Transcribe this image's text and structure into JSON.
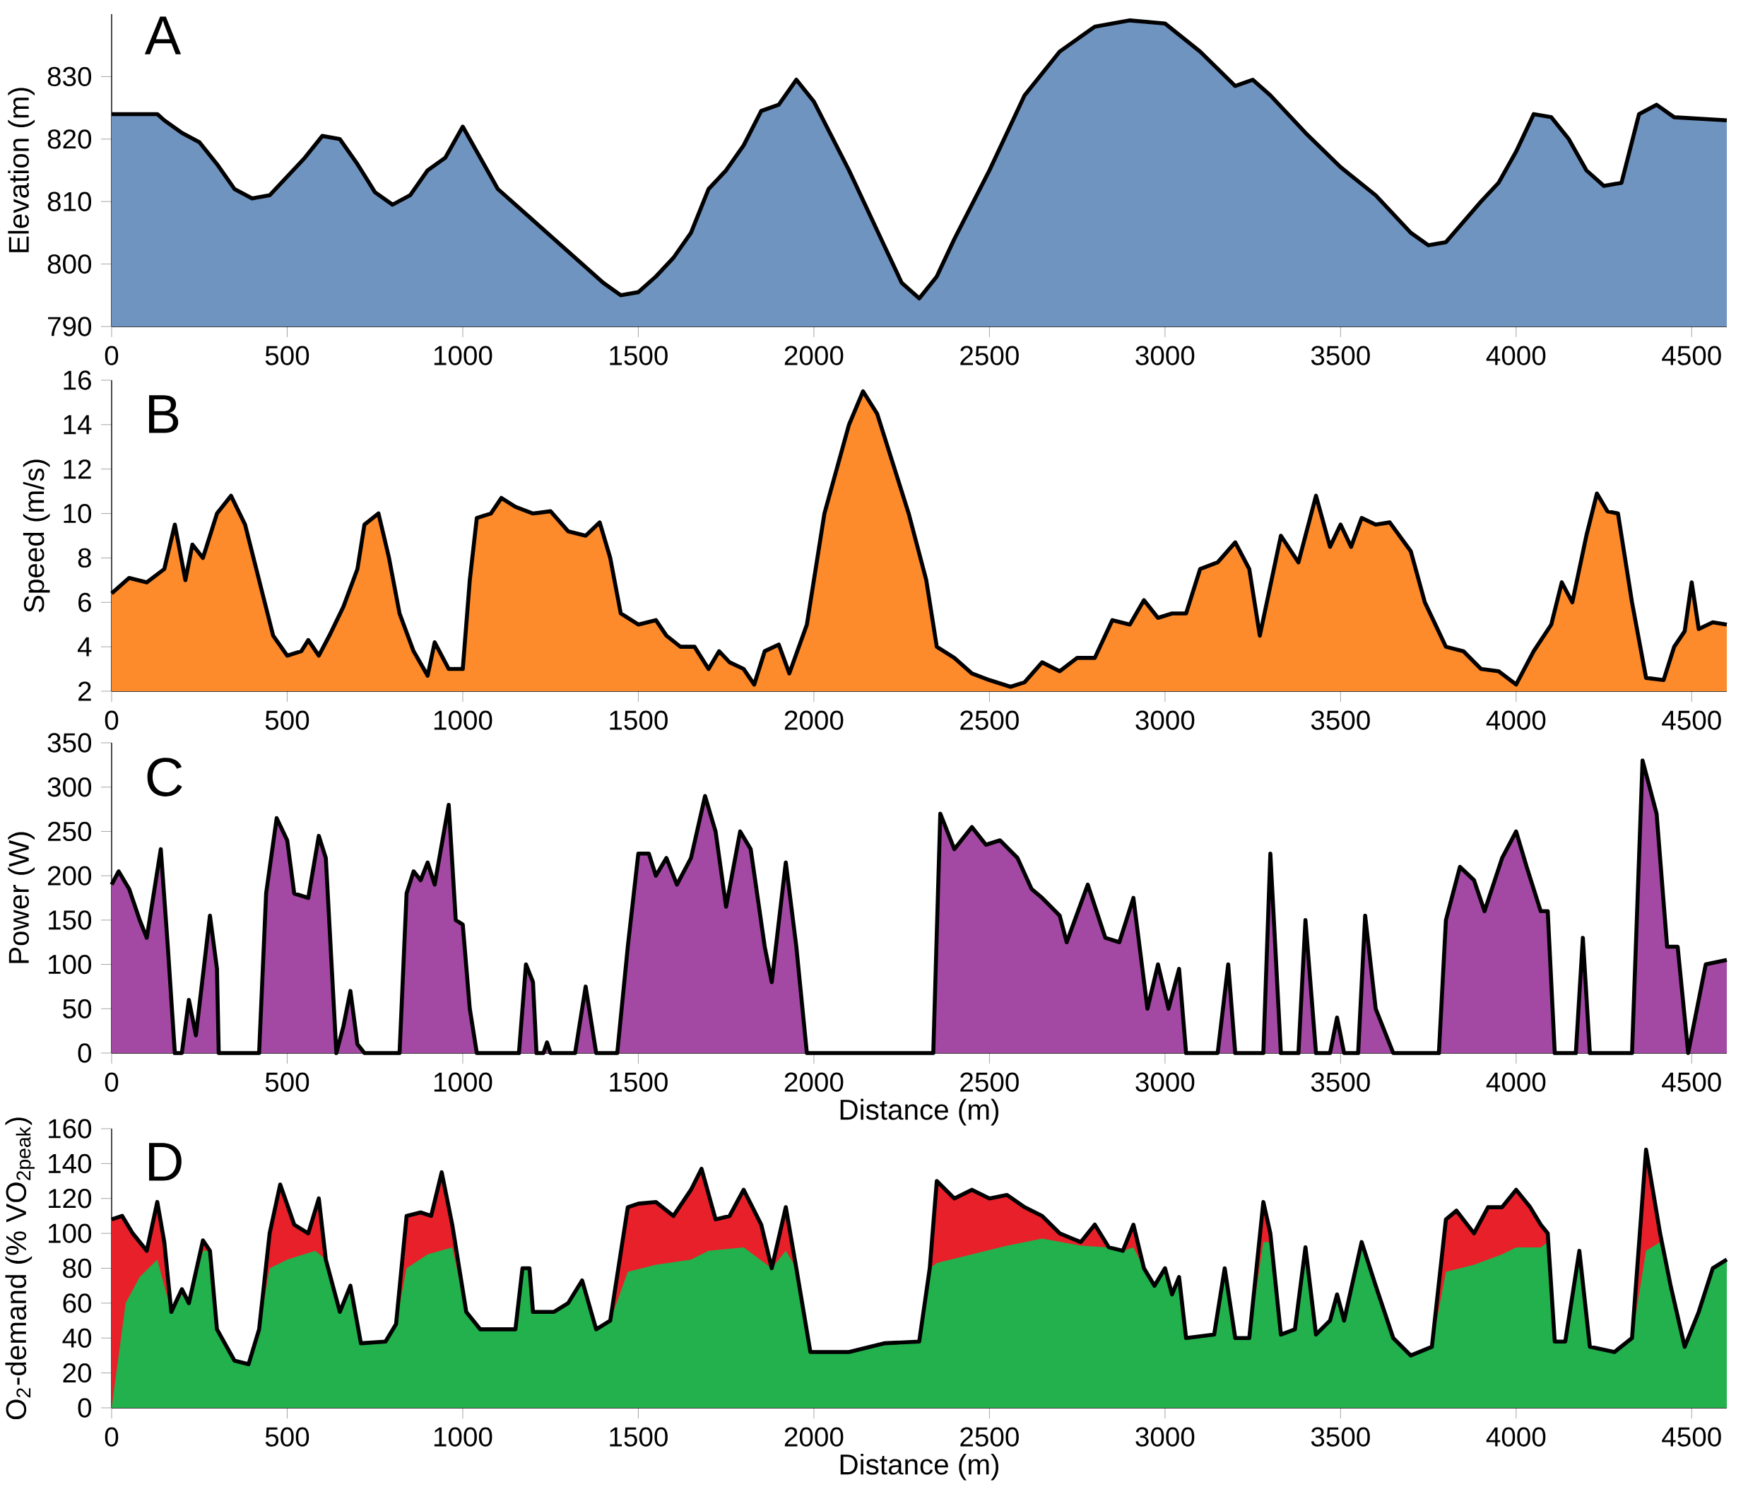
{
  "chart_data": [
    {
      "type": "area",
      "ylabel": "Elevation (m)",
      "annotations": [
        "A"
      ],
      "color": "#7094c0",
      "x": [
        0,
        130,
        150,
        200,
        250,
        300,
        350,
        400,
        450,
        500,
        550,
        600,
        650,
        700,
        750,
        800,
        850,
        900,
        950,
        1000,
        1050,
        1100,
        1200,
        1300,
        1400,
        1450,
        1500,
        1550,
        1600,
        1650,
        1700,
        1750,
        1800,
        1850,
        1900,
        1950,
        2000,
        2100,
        2200,
        2250,
        2300,
        2350,
        2400,
        2500,
        2600,
        2700,
        2800,
        2900,
        3000,
        3100,
        3200,
        3250,
        3300,
        3400,
        3500,
        3600,
        3700,
        3750,
        3800,
        3900,
        3950,
        4000,
        4050,
        4100,
        4150,
        4200,
        4250,
        4300,
        4350,
        4400,
        4450,
        4600
      ],
      "values": [
        824,
        824,
        823,
        821,
        819.5,
        816,
        812,
        810.5,
        811,
        814,
        817,
        820.5,
        820,
        816,
        811.5,
        809.5,
        811,
        815,
        817,
        822,
        817,
        812,
        807,
        802,
        797,
        795,
        795.5,
        798,
        801,
        805,
        812,
        815,
        819,
        824.5,
        825.5,
        829.5,
        826,
        815,
        803,
        797,
        794.5,
        798,
        804,
        815,
        827,
        834,
        838,
        839,
        838.5,
        834,
        828.5,
        829.5,
        827,
        821,
        815.5,
        811,
        805,
        803,
        803.5,
        810,
        813,
        818,
        824,
        823.5,
        820,
        815,
        812.5,
        813,
        824,
        825.5,
        823.5,
        823
      ],
      "xlim": [
        0,
        4600
      ],
      "ylim": [
        790,
        840
      ],
      "xticks": [
        0,
        500,
        1000,
        1500,
        2000,
        2500,
        3000,
        3500,
        4000,
        4500
      ],
      "yticks": [
        790,
        800,
        810,
        820,
        830
      ]
    },
    {
      "type": "area",
      "ylabel": "Speed (m/s)",
      "annotations": [
        "B"
      ],
      "color": "#fd8a2b",
      "x": [
        0,
        50,
        100,
        150,
        180,
        210,
        230,
        260,
        300,
        340,
        380,
        420,
        460,
        500,
        540,
        560,
        590,
        620,
        660,
        700,
        720,
        760,
        790,
        820,
        860,
        900,
        920,
        960,
        1000,
        1020,
        1040,
        1080,
        1110,
        1150,
        1200,
        1250,
        1300,
        1350,
        1390,
        1420,
        1450,
        1500,
        1550,
        1580,
        1620,
        1660,
        1700,
        1730,
        1760,
        1800,
        1830,
        1860,
        1900,
        1930,
        1980,
        2030,
        2100,
        2140,
        2180,
        2230,
        2270,
        2320,
        2350,
        2400,
        2450,
        2500,
        2560,
        2600,
        2650,
        2700,
        2750,
        2800,
        2850,
        2900,
        2940,
        2980,
        3020,
        3060,
        3100,
        3150,
        3200,
        3240,
        3270,
        3330,
        3380,
        3430,
        3470,
        3500,
        3530,
        3560,
        3600,
        3640,
        3700,
        3740,
        3800,
        3850,
        3900,
        3950,
        4000,
        4050,
        4100,
        4130,
        4160,
        4200,
        4230,
        4260,
        4290,
        4330,
        4370,
        4420,
        4450,
        4480,
        4500,
        4520,
        4560,
        4600
      ],
      "values": [
        6.4,
        7.1,
        6.9,
        7.5,
        9.5,
        7.0,
        8.6,
        8.0,
        10.0,
        10.8,
        9.5,
        7.0,
        4.5,
        3.6,
        3.8,
        4.3,
        3.6,
        4.5,
        5.8,
        7.5,
        9.5,
        10.0,
        8.0,
        5.5,
        3.8,
        2.7,
        4.2,
        3.0,
        3.0,
        7.0,
        9.8,
        10.0,
        10.7,
        10.3,
        10.0,
        10.1,
        9.2,
        9.0,
        9.6,
        8.0,
        5.5,
        5.0,
        5.2,
        4.5,
        4.0,
        4.0,
        3.0,
        3.8,
        3.3,
        3.0,
        2.3,
        3.8,
        4.1,
        2.8,
        5.0,
        10.0,
        14.0,
        15.5,
        14.5,
        12.0,
        10.0,
        7.0,
        4.0,
        3.5,
        2.8,
        2.5,
        2.2,
        2.4,
        3.3,
        2.9,
        3.5,
        3.5,
        5.2,
        5.0,
        6.1,
        5.3,
        5.5,
        5.5,
        7.5,
        7.8,
        8.7,
        7.5,
        4.5,
        9.0,
        7.8,
        10.8,
        8.5,
        9.5,
        8.5,
        9.8,
        9.5,
        9.6,
        8.3,
        6.0,
        4.0,
        3.8,
        3.0,
        2.9,
        2.3,
        3.8,
        5.0,
        6.9,
        6.0,
        9.0,
        10.9,
        10.1,
        10.0,
        6.0,
        2.6,
        2.5,
        4.0,
        4.7,
        6.9,
        4.8,
        5.1,
        5.0
      ],
      "xlim": [
        0,
        4600
      ],
      "ylim": [
        2,
        16
      ],
      "xticks": [
        0,
        500,
        1000,
        1500,
        2000,
        2500,
        3000,
        3500,
        4000,
        4500
      ],
      "yticks": [
        2,
        4,
        6,
        8,
        10,
        12,
        14,
        16
      ]
    },
    {
      "type": "area",
      "ylabel": "Power (W)",
      "xlabel": "Distance (m)",
      "annotations": [
        "C"
      ],
      "color": "#a349a4",
      "x": [
        0,
        20,
        50,
        80,
        100,
        140,
        160,
        180,
        200,
        220,
        240,
        280,
        300,
        305,
        420,
        440,
        470,
        500,
        520,
        560,
        590,
        610,
        640,
        660,
        680,
        700,
        720,
        820,
        840,
        860,
        880,
        900,
        920,
        960,
        980,
        1000,
        1020,
        1040,
        1160,
        1180,
        1200,
        1210,
        1230,
        1240,
        1250,
        1320,
        1350,
        1380,
        1440,
        1470,
        1500,
        1530,
        1550,
        1580,
        1610,
        1650,
        1690,
        1720,
        1750,
        1790,
        1820,
        1860,
        1880,
        1920,
        1950,
        1980,
        2340,
        2360,
        2400,
        2450,
        2490,
        2530,
        2580,
        2620,
        2650,
        2700,
        2720,
        2780,
        2830,
        2870,
        2910,
        2950,
        2980,
        3010,
        3040,
        3060,
        3150,
        3180,
        3200,
        3280,
        3300,
        3330,
        3380,
        3400,
        3430,
        3470,
        3490,
        3510,
        3550,
        3570,
        3600,
        3650,
        3780,
        3800,
        3840,
        3880,
        3910,
        3960,
        4000,
        4030,
        4070,
        4090,
        4110,
        4170,
        4190,
        4210,
        4330,
        4360,
        4400,
        4430,
        4460,
        4490,
        4540,
        4600
      ],
      "values": [
        190,
        205,
        185,
        150,
        130,
        230,
        120,
        0,
        0,
        60,
        20,
        155,
        95,
        0,
        0,
        180,
        265,
        240,
        180,
        175,
        245,
        220,
        0,
        30,
        70,
        10,
        0,
        0,
        180,
        205,
        195,
        215,
        190,
        280,
        150,
        145,
        50,
        0,
        0,
        100,
        80,
        0,
        0,
        12,
        0,
        0,
        75,
        0,
        0,
        120,
        225,
        225,
        200,
        220,
        190,
        220,
        290,
        250,
        165,
        250,
        230,
        120,
        80,
        215,
        120,
        0,
        0,
        270,
        230,
        255,
        235,
        240,
        220,
        185,
        175,
        155,
        125,
        190,
        130,
        125,
        175,
        50,
        100,
        50,
        95,
        0,
        0,
        100,
        0,
        0,
        225,
        0,
        0,
        150,
        0,
        0,
        40,
        0,
        0,
        155,
        50,
        0,
        0,
        150,
        210,
        195,
        160,
        220,
        250,
        210,
        160,
        160,
        0,
        0,
        130,
        0,
        0,
        330,
        270,
        120,
        120,
        0,
        100,
        105
      ],
      "xlim": [
        0,
        4600
      ],
      "ylim": [
        0,
        350
      ],
      "xticks": [
        0,
        500,
        1000,
        1500,
        2000,
        2500,
        3000,
        3500,
        4000,
        4500
      ],
      "yticks": [
        0,
        50,
        100,
        150,
        200,
        250,
        300,
        350
      ]
    },
    {
      "type": "area",
      "ylabel": "O$_{2}$-demand (% VO$_{2peak}$)",
      "xlabel": "Distance (m)",
      "annotations": [
        "D"
      ],
      "series": [
        {
          "color": "#e8202a",
          "x": [
            0,
            30,
            60,
            100,
            130,
            150,
            170,
            200,
            220,
            260,
            280,
            300,
            350,
            390,
            420,
            450,
            480,
            520,
            560,
            590,
            610,
            650,
            680,
            710,
            780,
            810,
            840,
            880,
            910,
            940,
            970,
            1010,
            1050,
            1100,
            1150,
            1170,
            1190,
            1200,
            1260,
            1300,
            1340,
            1380,
            1420,
            1470,
            1500,
            1550,
            1600,
            1650,
            1680,
            1720,
            1760,
            1800,
            1850,
            1880,
            1920,
            1950,
            1990,
            2100,
            2200,
            2300,
            2330,
            2350,
            2400,
            2450,
            2500,
            2550,
            2600,
            2650,
            2700,
            2760,
            2800,
            2840,
            2880,
            2910,
            2940,
            2970,
            3000,
            3020,
            3040,
            3060,
            3140,
            3170,
            3200,
            3240,
            3280,
            3300,
            3330,
            3370,
            3400,
            3430,
            3470,
            3490,
            3510,
            3560,
            3600,
            3650,
            3700,
            3760,
            3800,
            3830,
            3880,
            3920,
            3960,
            4000,
            4040,
            4070,
            4090,
            4110,
            4140,
            4180,
            4210,
            4280,
            4330,
            4370,
            4410,
            4440,
            4480,
            4520,
            4560,
            4600
          ],
          "values": [
            108,
            110,
            100,
            90,
            118,
            95,
            55,
            68,
            60,
            96,
            90,
            45,
            27,
            25,
            45,
            100,
            128,
            105,
            100,
            120,
            85,
            55,
            70,
            37,
            38,
            48,
            110,
            112,
            110,
            135,
            105,
            55,
            45,
            45,
            45,
            80,
            80,
            55,
            55,
            60,
            73,
            45,
            50,
            115,
            117,
            118,
            110,
            125,
            137,
            108,
            110,
            125,
            105,
            80,
            115,
            80,
            32,
            32,
            37,
            38,
            80,
            130,
            120,
            125,
            120,
            122,
            115,
            110,
            100,
            95,
            105,
            92,
            90,
            105,
            80,
            70,
            80,
            65,
            75,
            40,
            42,
            80,
            40,
            40,
            118,
            100,
            42,
            45,
            92,
            42,
            50,
            65,
            50,
            95,
            70,
            40,
            30,
            35,
            108,
            113,
            100,
            115,
            115,
            125,
            115,
            105,
            100,
            38,
            38,
            90,
            35,
            32,
            40,
            148,
            100,
            70,
            35,
            55,
            80,
            85
          ]
        },
        {
          "color": "#22b14c",
          "x": [
            0,
            20,
            40,
            80,
            130,
            170,
            200,
            220,
            260,
            280,
            300,
            350,
            390,
            420,
            450,
            500,
            580,
            610,
            650,
            680,
            710,
            780,
            810,
            840,
            900,
            970,
            1010,
            1050,
            1100,
            1150,
            1170,
            1190,
            1200,
            1260,
            1300,
            1340,
            1380,
            1420,
            1470,
            1550,
            1650,
            1700,
            1800,
            1880,
            1920,
            1950,
            1990,
            2100,
            2200,
            2300,
            2330,
            2350,
            2450,
            2550,
            2650,
            2760,
            2840,
            2880,
            2910,
            2940,
            2970,
            3000,
            3020,
            3040,
            3060,
            3140,
            3170,
            3200,
            3240,
            3280,
            3300,
            3330,
            3370,
            3400,
            3430,
            3470,
            3490,
            3510,
            3560,
            3600,
            3650,
            3700,
            3760,
            3800,
            3880,
            3960,
            4000,
            4070,
            4090,
            4110,
            4140,
            4180,
            4210,
            4280,
            4330,
            4370,
            4410,
            4440,
            4480,
            4520,
            4560,
            4600
          ],
          "values": [
            0,
            30,
            60,
            75,
            85,
            55,
            65,
            60,
            90,
            90,
            45,
            27,
            25,
            45,
            80,
            85,
            90,
            85,
            55,
            70,
            37,
            38,
            48,
            80,
            88,
            92,
            55,
            45,
            45,
            45,
            80,
            80,
            55,
            55,
            60,
            73,
            45,
            50,
            78,
            82,
            85,
            90,
            92,
            80,
            90,
            80,
            32,
            32,
            37,
            38,
            80,
            83,
            88,
            93,
            97,
            93,
            92,
            90,
            92,
            80,
            70,
            80,
            65,
            75,
            40,
            42,
            80,
            40,
            40,
            95,
            95,
            42,
            45,
            92,
            42,
            50,
            65,
            50,
            95,
            70,
            40,
            30,
            35,
            78,
            82,
            88,
            92,
            92,
            95,
            38,
            38,
            90,
            35,
            32,
            40,
            90,
            95,
            70,
            35,
            55,
            80,
            85
          ]
        }
      ],
      "xlim": [
        0,
        4600
      ],
      "ylim": [
        0,
        160
      ],
      "xticks": [
        0,
        500,
        1000,
        1500,
        2000,
        2500,
        3000,
        3500,
        4000,
        4500
      ],
      "yticks": [
        0,
        20,
        40,
        60,
        80,
        100,
        120,
        140,
        160
      ]
    }
  ]
}
